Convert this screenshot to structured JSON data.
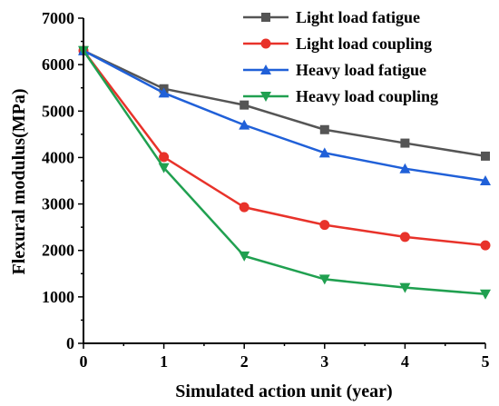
{
  "chart_data": {
    "type": "line",
    "title": "",
    "xlabel": "Simulated action unit (year)",
    "ylabel": "Flexural modulus(MPa)",
    "x": [
      0,
      1,
      2,
      3,
      4,
      5
    ],
    "xlim": [
      0,
      5
    ],
    "ylim": [
      0,
      7000
    ],
    "x_ticks": [
      "0",
      "1",
      "2",
      "3",
      "4",
      "5"
    ],
    "y_ticks": [
      "0",
      "1000",
      "2000",
      "3000",
      "4000",
      "5000",
      "6000",
      "7000"
    ],
    "grid": false,
    "legend_position": "top-right",
    "series": [
      {
        "name": "Light load fatigue",
        "color": "#555555",
        "marker": "square",
        "values": [
          6300,
          5480,
          5130,
          4600,
          4310,
          4030
        ]
      },
      {
        "name": "Light load coupling",
        "color": "#e8322a",
        "marker": "circle",
        "values": [
          6300,
          4010,
          2930,
          2550,
          2290,
          2110
        ]
      },
      {
        "name": "Heavy load fatigue",
        "color": "#2060d8",
        "marker": "triangle-up",
        "values": [
          6300,
          5390,
          4700,
          4100,
          3760,
          3500
        ]
      },
      {
        "name": "Heavy load coupling",
        "color": "#20a050",
        "marker": "triangle-down",
        "values": [
          6300,
          3780,
          1880,
          1380,
          1200,
          1060
        ]
      }
    ]
  }
}
